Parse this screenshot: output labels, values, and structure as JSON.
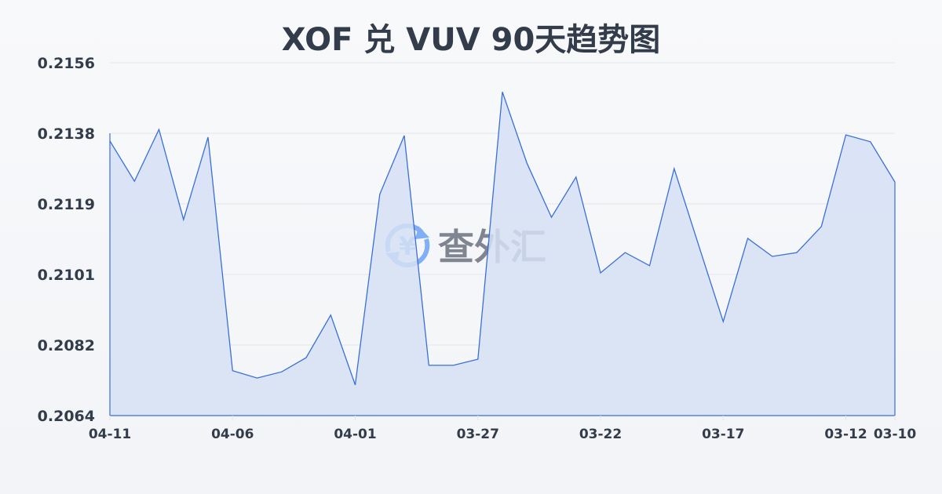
{
  "title": "XOF 兑 VUV 90天趋势图",
  "watermark": "查外汇",
  "colors": {
    "line": "#3a6fd8",
    "fill": "#d5e0f5",
    "grid": "#e3e6ea",
    "text": "#333c4a",
    "watermark_icon": "#7fb0f5"
  },
  "chart_data": {
    "type": "area",
    "title": "XOF 兑 VUV 90天趋势图",
    "ylim": [
      0.2064,
      0.2156
    ],
    "yticks": [
      "0.2156",
      "0.2138",
      "0.2119",
      "0.2101",
      "0.2082",
      "0.2064"
    ],
    "xticks": [
      "04-11",
      "04-06",
      "04-01",
      "03-27",
      "03-22",
      "03-17",
      "03-12",
      "03-10"
    ],
    "grid": true,
    "x": [
      "04-11",
      "04-10",
      "04-09",
      "04-08",
      "04-07",
      "04-06",
      "04-05",
      "04-04",
      "04-03",
      "04-02",
      "04-01",
      "03-31",
      "03-30",
      "03-29",
      "03-28",
      "03-27",
      "03-26",
      "03-25",
      "03-24",
      "03-23",
      "03-22",
      "03-21",
      "03-20",
      "03-19",
      "03-18",
      "03-17",
      "03-16",
      "03-15",
      "03-14",
      "03-13",
      "03-12",
      "03-11",
      "03-10"
    ],
    "values": [
      0.21356,
      0.21251,
      0.21386,
      0.21151,
      0.21366,
      0.20757,
      0.20738,
      0.20754,
      0.20791,
      0.20902,
      0.2072,
      0.21217,
      0.2137,
      0.20771,
      0.20771,
      0.20787,
      0.21484,
      0.21298,
      0.21157,
      0.21262,
      0.21012,
      0.21065,
      0.21031,
      0.21284,
      0.21084,
      0.20885,
      0.21102,
      0.21055,
      0.21065,
      0.21133,
      0.21372,
      0.21354,
      0.21249
    ]
  }
}
